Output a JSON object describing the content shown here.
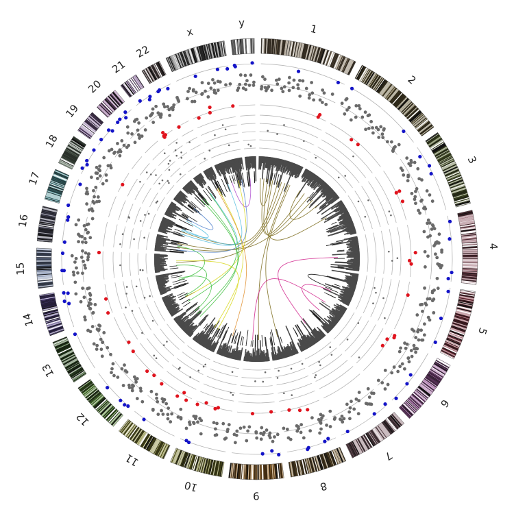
{
  "chromosomes": [
    {
      "label": "1",
      "size": 249,
      "color": "#7a6a52"
    },
    {
      "label": "2",
      "size": 243,
      "color": "#6b5f3a"
    },
    {
      "label": "3",
      "size": 198,
      "color": "#5d6a36"
    },
    {
      "label": "4",
      "size": 190,
      "color": "#8a4f5c"
    },
    {
      "label": "5",
      "size": 181,
      "color": "#8a3e4a"
    },
    {
      "label": "6",
      "size": 171,
      "color": "#9a5a9a"
    },
    {
      "label": "7",
      "size": 159,
      "color": "#8a6a72"
    },
    {
      "label": "8",
      "size": 146,
      "color": "#7a6238"
    },
    {
      "label": "9",
      "size": 141,
      "color": "#9a6a2a"
    },
    {
      "label": "10",
      "size": 136,
      "color": "#7a7a2e"
    },
    {
      "label": "11",
      "size": 135,
      "color": "#8a8a3a"
    },
    {
      "label": "12",
      "size": 133,
      "color": "#5a8a3a"
    },
    {
      "label": "13",
      "size": 115,
      "color": "#3a5a2e"
    },
    {
      "label": "14",
      "size": 107,
      "color": "#5a4a8a"
    },
    {
      "label": "15",
      "size": 102,
      "color": "#7a8aaa"
    },
    {
      "label": "16",
      "size": 90,
      "color": "#5a5a6e"
    },
    {
      "label": "17",
      "size": 81,
      "color": "#5a9aa0"
    },
    {
      "label": "18",
      "size": 78,
      "color": "#6a7a6a"
    },
    {
      "label": "19",
      "size": 59,
      "color": "#8a6aa0"
    },
    {
      "label": "20",
      "size": 63,
      "color": "#9a6aa0"
    },
    {
      "label": "21",
      "size": 48,
      "color": "#8a6a9a"
    },
    {
      "label": "22",
      "size": 51,
      "color": "#6a5a5a"
    },
    {
      "label": "x",
      "size": 155,
      "color": "#5a5a5a"
    },
    {
      "label": "y",
      "size": 59,
      "color": "#d4d4d4"
    }
  ],
  "colors": {
    "label": "#222222",
    "track_line": "#b4b4b4",
    "dot_gray": "#6a6a6a",
    "dot_red": "#e0141e",
    "dot_blue": "#1414c8",
    "link_olive": "#7a6a1a",
    "link_pink": "#d0208a",
    "link_cyan": "#58c0e0",
    "link_blue": "#5a8ad0",
    "link_green": "#40c040",
    "link_yellow": "#d8d820",
    "link_orange": "#e09030",
    "link_purple": "#b050d0",
    "link_black": "#111111"
  },
  "links": [
    {
      "from": [
        0,
        0.05
      ],
      "to": [
        0,
        0.35
      ],
      "color": "link_olive"
    },
    {
      "from": [
        0,
        0.15
      ],
      "to": [
        1,
        0.3
      ],
      "color": "link_olive"
    },
    {
      "from": [
        0,
        0.25
      ],
      "to": [
        1,
        0.6
      ],
      "color": "link_olive"
    },
    {
      "from": [
        0,
        0.4
      ],
      "to": [
        2,
        0.2
      ],
      "color": "link_olive"
    },
    {
      "from": [
        0,
        0.55
      ],
      "to": [
        16,
        0.5
      ],
      "color": "link_olive"
    },
    {
      "from": [
        0,
        0.65
      ],
      "to": [
        15,
        0.4
      ],
      "color": "link_olive"
    },
    {
      "from": [
        0,
        0.75
      ],
      "to": [
        14,
        0.5
      ],
      "color": "link_olive"
    },
    {
      "from": [
        0,
        0.85
      ],
      "to": [
        8,
        0.4
      ],
      "color": "link_olive"
    },
    {
      "from": [
        0,
        0.9
      ],
      "to": [
        7,
        0.6
      ],
      "color": "link_olive"
    },
    {
      "from": [
        1,
        0.15
      ],
      "to": [
        1,
        0.8
      ],
      "color": "link_olive"
    },
    {
      "from": [
        1,
        0.45
      ],
      "to": [
        15,
        0.7
      ],
      "color": "link_olive"
    },
    {
      "from": [
        3,
        0.6
      ],
      "to": [
        6,
        0.3
      ],
      "color": "link_pink"
    },
    {
      "from": [
        5,
        0.2
      ],
      "to": [
        8,
        0.7
      ],
      "color": "link_pink"
    },
    {
      "from": [
        4,
        0.8
      ],
      "to": [
        5,
        0.6
      ],
      "color": "link_pink"
    },
    {
      "from": [
        22,
        0.4
      ],
      "to": [
        23,
        0.3
      ],
      "color": "link_purple"
    },
    {
      "from": [
        22,
        0.7
      ],
      "to": [
        12,
        0.5
      ],
      "color": "link_yellow"
    },
    {
      "from": [
        21,
        0.5
      ],
      "to": [
        10,
        0.5
      ],
      "color": "link_yellow"
    },
    {
      "from": [
        21,
        0.3
      ],
      "to": [
        9,
        0.6
      ],
      "color": "link_orange"
    },
    {
      "from": [
        20,
        0.5
      ],
      "to": [
        11,
        0.5
      ],
      "color": "link_green"
    },
    {
      "from": [
        19,
        0.5
      ],
      "to": [
        11,
        0.3
      ],
      "color": "link_green"
    },
    {
      "from": [
        18,
        0.5
      ],
      "to": [
        17,
        0.5
      ],
      "color": "link_blue"
    },
    {
      "from": [
        17,
        0.3
      ],
      "to": [
        16,
        0.6
      ],
      "color": "link_cyan"
    },
    {
      "from": [
        16,
        0.3
      ],
      "to": [
        22,
        0.2
      ],
      "color": "link_cyan"
    },
    {
      "from": [
        16,
        0.7
      ],
      "to": [
        20,
        0.6
      ],
      "color": "link_cyan"
    },
    {
      "from": [
        15,
        0.5
      ],
      "to": [
        13,
        0.5
      ],
      "color": "link_green"
    },
    {
      "from": [
        14,
        0.3
      ],
      "to": [
        12,
        0.6
      ],
      "color": "link_green"
    },
    {
      "from": [
        14,
        0.6
      ],
      "to": [
        10,
        0.3
      ],
      "color": "link_yellow"
    },
    {
      "from": [
        13,
        0.6
      ],
      "to": [
        11,
        0.7
      ],
      "color": "link_green"
    },
    {
      "from": [
        22,
        0.85
      ],
      "to": [
        15,
        0.2
      ],
      "color": "link_blue"
    },
    {
      "from": [
        19,
        0.8
      ],
      "to": [
        12,
        0.2
      ],
      "color": "link_green"
    },
    {
      "from": [
        4,
        0.3
      ],
      "to": [
        4,
        0.7
      ],
      "color": "link_black"
    }
  ]
}
